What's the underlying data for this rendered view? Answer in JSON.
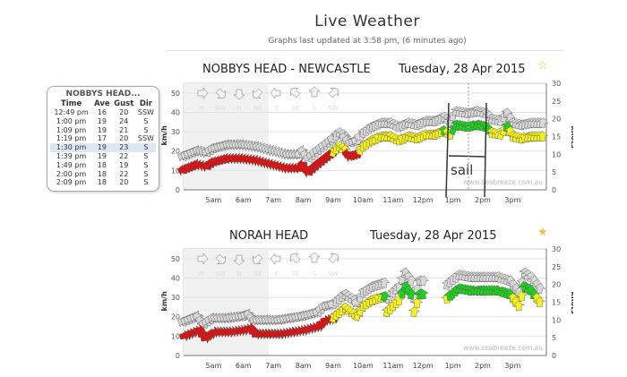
{
  "page": {
    "title": "Live Weather",
    "updated": "Graphs last updated at 3:58 pm, (6 minutes ago)"
  },
  "panel": {
    "title": "NOBBYS HEAD...",
    "headers": [
      "Time",
      "Ave",
      "Gust",
      "Dir"
    ],
    "rows": [
      [
        "12:49 pm",
        "16",
        "20",
        "SSW"
      ],
      [
        "1:00 pm",
        "19",
        "24",
        "S"
      ],
      [
        "1:09 pm",
        "19",
        "21",
        "S"
      ],
      [
        "1:19 pm",
        "17",
        "20",
        "SSW"
      ],
      [
        "1:30 pm",
        "19",
        "23",
        "S"
      ],
      [
        "1:39 pm",
        "19",
        "22",
        "S"
      ],
      [
        "1:49 pm",
        "18",
        "19",
        "S"
      ],
      [
        "2:00 pm",
        "18",
        "22",
        "S"
      ],
      [
        "2:09 pm",
        "18",
        "20",
        "S"
      ]
    ],
    "highlight_row": 4
  },
  "colors": {
    "low": "#e01010",
    "mid": "#f5f020",
    "high": "#20d020",
    "gust": "#d8d8d8"
  },
  "chart_data": [
    {
      "type": "scatter",
      "title": "NOBBYS HEAD - NEWCASTLE",
      "date": "Tuesday, 28 Apr 2015",
      "ylabel": "km/h",
      "y2label": "knots",
      "ylim": [
        0,
        55
      ],
      "y2lim": [
        0,
        30
      ],
      "yticks": [
        0,
        10,
        20,
        30,
        40,
        50
      ],
      "y2ticks": [
        0,
        5,
        10,
        15,
        20,
        25,
        30
      ],
      "xticks": [
        "5am",
        "6am",
        "7am",
        "8am",
        "9am",
        "10am",
        "11am",
        "12pm",
        "1pm",
        "2pm",
        "3pm"
      ],
      "directions": [
        "W",
        "NW",
        "N",
        "NE",
        "E",
        "SE",
        "S",
        "SW"
      ],
      "watermark": "www.seabreeze.com.au",
      "annotation": "sail",
      "series": [
        [
          4.0,
          10
        ],
        [
          4.5,
          13
        ],
        [
          4.8,
          12
        ],
        [
          5.0,
          14
        ],
        [
          5.5,
          16
        ],
        [
          6.0,
          16
        ],
        [
          6.5,
          15
        ],
        [
          7.0,
          13
        ],
        [
          7.5,
          11
        ],
        [
          7.9,
          11
        ],
        [
          8.0,
          13
        ],
        [
          8.2,
          9
        ],
        [
          8.5,
          13
        ],
        [
          9.0,
          19
        ],
        [
          9.2,
          22
        ],
        [
          9.4,
          20
        ],
        [
          9.6,
          17
        ],
        [
          9.8,
          18
        ],
        [
          10.0,
          22
        ],
        [
          10.3,
          25
        ],
        [
          10.6,
          27
        ],
        [
          10.9,
          27
        ],
        [
          11.2,
          25
        ],
        [
          11.5,
          27
        ],
        [
          11.8,
          26
        ],
        [
          12.1,
          28
        ],
        [
          12.4,
          28
        ],
        [
          12.7,
          30
        ],
        [
          12.9,
          28
        ],
        [
          13.1,
          33
        ],
        [
          13.5,
          32
        ],
        [
          13.8,
          33
        ],
        [
          14.1,
          32
        ],
        [
          14.3,
          29
        ],
        [
          14.6,
          28
        ],
        [
          14.8,
          32
        ],
        [
          15.0,
          27
        ],
        [
          15.3,
          26
        ],
        [
          15.6,
          27
        ],
        [
          16.0,
          27
        ]
      ]
    },
    {
      "type": "scatter",
      "title": "NORAH HEAD",
      "date": "Tuesday, 28 Apr 2015",
      "ylabel": "km/h",
      "y2label": "knots",
      "ylim": [
        0,
        55
      ],
      "y2lim": [
        0,
        30
      ],
      "yticks": [
        0,
        10,
        20,
        30,
        40,
        50
      ],
      "y2ticks": [
        0,
        5,
        10,
        15,
        20,
        25,
        30
      ],
      "xticks": [
        "5am",
        "6am",
        "7am",
        "8am",
        "9am",
        "10am",
        "11am",
        "12pm",
        "1pm",
        "2pm",
        "3pm"
      ],
      "directions": [
        "W",
        "NW",
        "N",
        "NE",
        "E",
        "SE",
        "S",
        "SW"
      ],
      "watermark": "www.seabreeze.com.au",
      "series": [
        [
          4.0,
          10
        ],
        [
          4.5,
          13
        ],
        [
          4.7,
          9
        ],
        [
          5.0,
          12
        ],
        [
          5.5,
          12
        ],
        [
          6.0,
          13
        ],
        [
          6.2,
          14
        ],
        [
          6.4,
          11
        ],
        [
          6.8,
          11
        ],
        [
          7.2,
          11
        ],
        [
          7.6,
          12
        ],
        [
          8.0,
          13
        ],
        [
          8.5,
          15
        ],
        [
          8.7,
          18
        ],
        [
          9.0,
          19
        ],
        [
          9.4,
          24
        ],
        [
          9.8,
          20
        ],
        [
          10.0,
          25
        ],
        [
          10.3,
          28
        ],
        [
          10.7,
          30
        ],
        [
          10.8,
          22
        ],
        [
          11.2,
          28
        ],
        [
          11.4,
          35
        ],
        [
          11.6,
          31
        ],
        [
          11.7,
          22
        ],
        [
          11.9,
          31
        ],
        [
          12.1,
          31
        ],
        null,
        [
          12.8,
          29
        ],
        [
          13.2,
          34
        ],
        [
          13.6,
          33
        ],
        [
          14.0,
          33
        ],
        [
          14.5,
          33
        ],
        [
          14.9,
          31
        ],
        [
          15.2,
          25
        ],
        [
          15.4,
          35
        ],
        [
          15.6,
          33
        ],
        [
          15.9,
          27
        ]
      ]
    }
  ]
}
